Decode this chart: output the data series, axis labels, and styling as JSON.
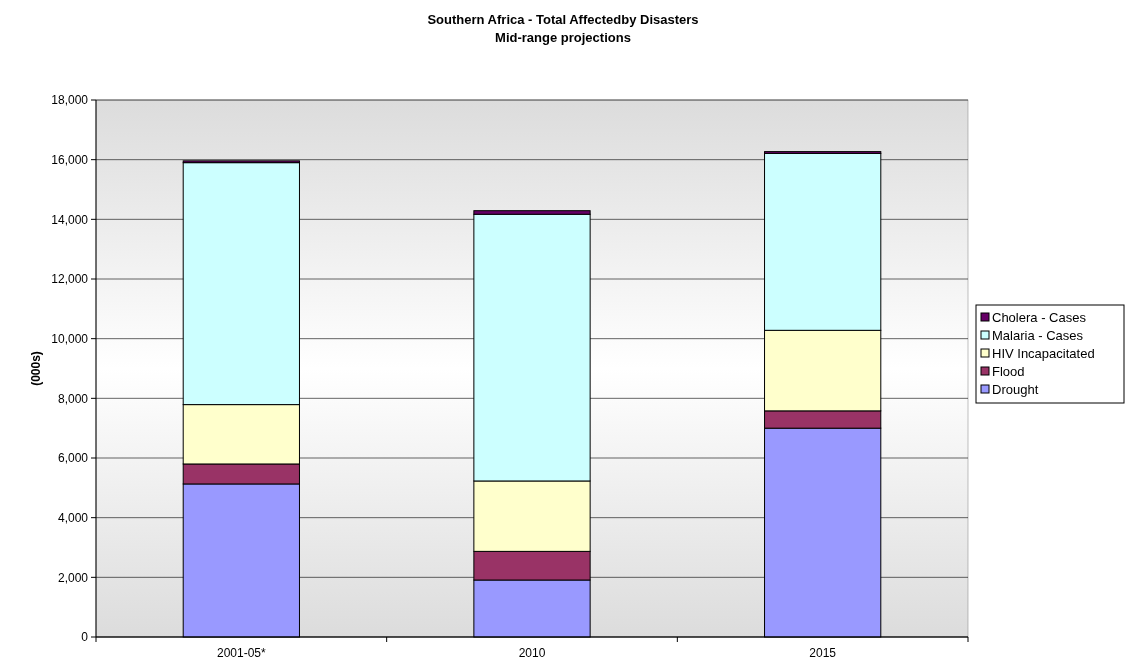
{
  "chart_data": {
    "type": "bar",
    "title": "Southern Africa - Total Affectedby Disasters",
    "subtitle": "Mid-range projections",
    "ylabel": "(000s)",
    "categories": [
      "2001-05*",
      "2010",
      "2015"
    ],
    "stacked": true,
    "series": [
      {
        "name": "Drought",
        "color": "#9999ff",
        "values": [
          5130,
          1910,
          7000
        ]
      },
      {
        "name": "Flood",
        "color": "#993366",
        "values": [
          670,
          960,
          580
        ]
      },
      {
        "name": "HIV Incapacitated",
        "color": "#ffffcc",
        "values": [
          1990,
          2360,
          2700
        ]
      },
      {
        "name": "Malaria - Cases",
        "color": "#ccffff",
        "values": [
          8110,
          8940,
          5930
        ]
      },
      {
        "name": "Cholera - Cases",
        "color": "#660066",
        "values": [
          60,
          120,
          60
        ]
      }
    ],
    "ylim": [
      0,
      18000
    ],
    "yticks": [
      {
        "value": 0,
        "label": "0"
      },
      {
        "value": 2000,
        "label": "2,000"
      },
      {
        "value": 4000,
        "label": "4,000"
      },
      {
        "value": 6000,
        "label": "6,000"
      },
      {
        "value": 8000,
        "label": "8,000"
      },
      {
        "value": 10000,
        "label": "10,000"
      },
      {
        "value": 12000,
        "label": "12,000"
      },
      {
        "value": 14000,
        "label": "14,000"
      },
      {
        "value": 16000,
        "label": "16,000"
      },
      {
        "value": 18000,
        "label": "18,000"
      }
    ],
    "grid": "y",
    "legend": "right"
  }
}
